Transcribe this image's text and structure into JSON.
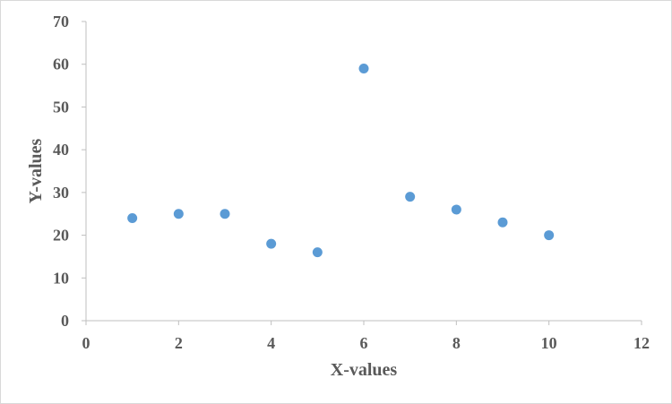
{
  "chart_data": {
    "type": "scatter",
    "title": "",
    "xlabel": "X-values",
    "ylabel": "Y-values",
    "xlim": [
      0,
      12
    ],
    "ylim": [
      0,
      70
    ],
    "xticks": [
      0,
      2,
      4,
      6,
      8,
      10,
      12
    ],
    "yticks": [
      0,
      10,
      20,
      30,
      40,
      50,
      60,
      70
    ],
    "grid": false,
    "legend": "none",
    "marker_color": "#5b9bd5",
    "series": [
      {
        "x": [
          1,
          2,
          3,
          4,
          5,
          6,
          7,
          8,
          9,
          10
        ],
        "y": [
          24,
          25,
          25,
          18,
          16,
          59,
          29,
          26,
          23,
          20
        ]
      }
    ]
  }
}
